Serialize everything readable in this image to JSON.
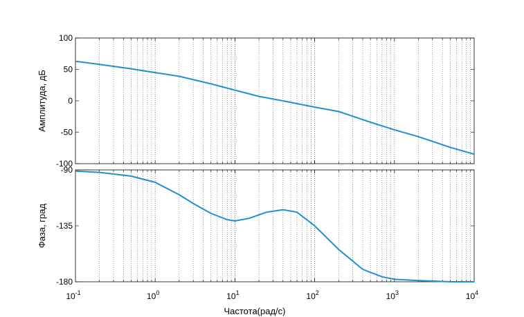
{
  "chart_data": [
    {
      "type": "line",
      "x_scale": "log",
      "xlim": [
        0.1,
        10000
      ],
      "ylim": [
        -100,
        100
      ],
      "ylabel": "Амплитуда, дБ",
      "xlabel": "",
      "yticks": [
        100,
        50,
        0,
        -50,
        -100
      ],
      "grid": "x-minor-dotted",
      "color": "#1f8fd0",
      "series": [
        {
          "x": [
            0.1,
            0.2,
            0.5,
            1,
            2,
            5,
            10,
            20,
            40,
            100,
            200,
            500,
            1000,
            2000,
            5000,
            10000
          ],
          "values": [
            63,
            58,
            51,
            45,
            39,
            27,
            17,
            7,
            0,
            -10,
            -17,
            -34,
            -46,
            -57,
            -74,
            -85
          ]
        }
      ]
    },
    {
      "type": "line",
      "x_scale": "log",
      "xlim": [
        0.1,
        10000
      ],
      "ylim": [
        -180,
        -90
      ],
      "ylabel": "Фаза, град",
      "xlabel": "Частота(рад/с)",
      "yticks": [
        -90,
        -135,
        -180
      ],
      "xticks": [
        {
          "value": 0.1,
          "base": "10",
          "exp": "-1"
        },
        {
          "value": 1,
          "base": "10",
          "exp": "0"
        },
        {
          "value": 10,
          "base": "10",
          "exp": "1"
        },
        {
          "value": 100,
          "base": "10",
          "exp": "2"
        },
        {
          "value": 1000,
          "base": "10",
          "exp": "3"
        },
        {
          "value": 10000,
          "base": "10",
          "exp": "4"
        }
      ],
      "grid": "x-minor-dotted",
      "color": "#1f8fd0",
      "series": [
        {
          "x": [
            0.1,
            0.2,
            0.5,
            1,
            2,
            3,
            5,
            8,
            10,
            15,
            25,
            40,
            60,
            100,
            200,
            400,
            700,
            1000,
            2000,
            5000,
            10000
          ],
          "values": [
            -91,
            -92,
            -95,
            -100,
            -110,
            -117,
            -125,
            -130,
            -131,
            -129,
            -124,
            -122,
            -124,
            -135,
            -154,
            -170,
            -176,
            -178,
            -179,
            -180,
            -180
          ]
        }
      ]
    }
  ]
}
